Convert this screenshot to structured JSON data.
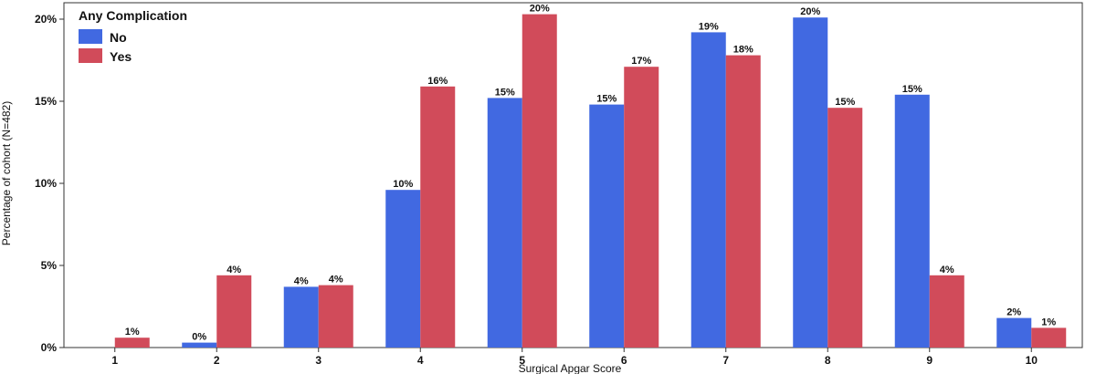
{
  "chart_data": {
    "type": "bar",
    "xlabel": "Surgical Apgar Score",
    "ylabel": "Percentage of cohort (N=482)",
    "categories": [
      "1",
      "2",
      "3",
      "4",
      "5",
      "6",
      "7",
      "8",
      "9",
      "10"
    ],
    "ylim": [
      0,
      21
    ],
    "yticks": [
      0,
      5,
      10,
      15,
      20
    ],
    "ytick_labels": [
      "0%",
      "5%",
      "10%",
      "15%",
      "20%"
    ],
    "legend": {
      "title": "Any Complication",
      "position": "top-left"
    },
    "series": [
      {
        "name": "No",
        "color": "#4169e1",
        "values": [
          null,
          0.3,
          3.7,
          9.6,
          15.2,
          14.8,
          19.2,
          20.1,
          15.4,
          1.8
        ],
        "labels": [
          "",
          "0%",
          "4%",
          "10%",
          "15%",
          "15%",
          "19%",
          "20%",
          "15%",
          "2%"
        ]
      },
      {
        "name": "Yes",
        "color": "#d14b5a",
        "values": [
          0.6,
          4.4,
          3.8,
          15.9,
          20.3,
          17.1,
          17.8,
          14.6,
          4.4,
          1.2
        ],
        "labels": [
          "1%",
          "4%",
          "4%",
          "16%",
          "20%",
          "17%",
          "18%",
          "15%",
          "4%",
          "1%"
        ]
      }
    ],
    "grid": false
  }
}
